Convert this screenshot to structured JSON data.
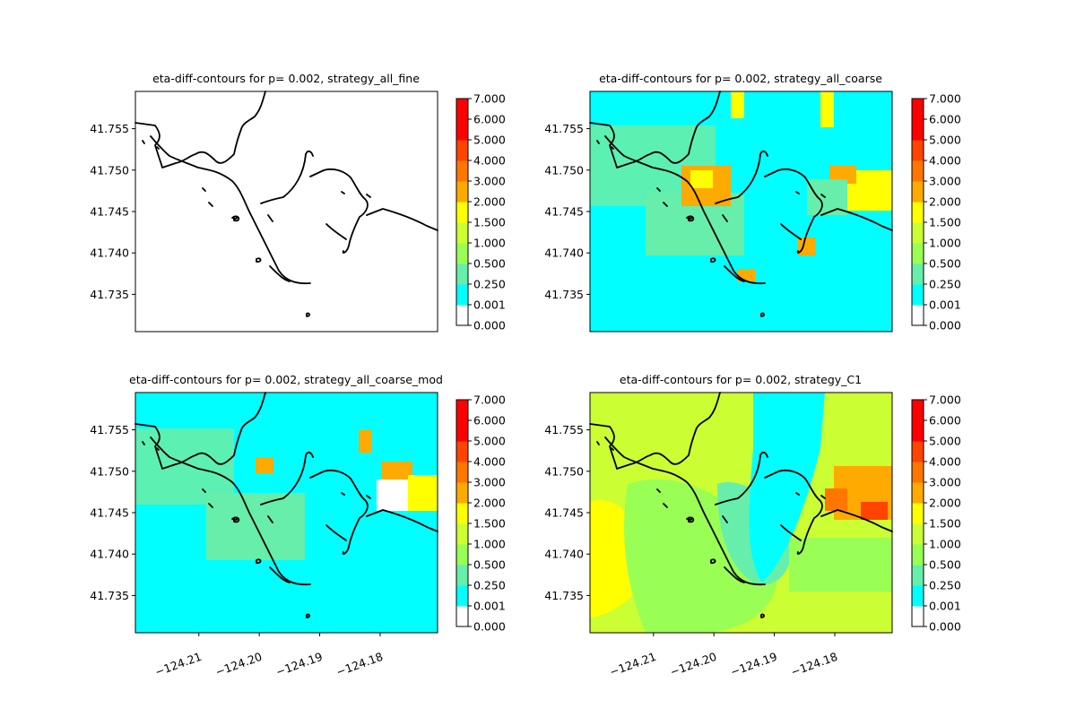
{
  "colors": {
    "levels": [
      "#ffffff",
      "#00ffff",
      "#66eeaa",
      "#99ff55",
      "#ccff33",
      "#ffff00",
      "#ffaa00",
      "#ff7700",
      "#ff4400",
      "#ff0000"
    ],
    "coast": "#000000"
  },
  "chart_data": [
    {
      "type": "heatmap",
      "title": "eta-diff-contours for p= 0.002, strategy_all_fine",
      "y_ticks": [
        "41.755",
        "41.750",
        "41.745",
        "41.740",
        "41.735"
      ],
      "x_ticks": [],
      "colorbar_ticks": [
        "7.000",
        "6.000",
        "5.000",
        "4.000",
        "3.000",
        "2.000",
        "1.500",
        "1.000",
        "0.500",
        "0.250",
        "0.001",
        "0.000"
      ],
      "colorbar_levels": [
        0.0,
        0.001,
        0.25,
        0.5,
        1.0,
        1.5,
        2.0,
        3.0,
        4.0,
        5.0,
        6.0,
        7.0
      ],
      "xlim": [
        -124.2205,
        -124.1705
      ],
      "ylim": [
        41.7305,
        41.7595
      ],
      "grid": false
    },
    {
      "type": "heatmap",
      "title": "eta-diff-contours for p= 0.002, strategy_all_coarse",
      "y_ticks": [
        "41.755",
        "41.750",
        "41.745",
        "41.740",
        "41.735"
      ],
      "x_ticks": [],
      "colorbar_ticks": [
        "7.000",
        "6.000",
        "5.000",
        "4.000",
        "3.000",
        "2.000",
        "1.500",
        "1.000",
        "0.500",
        "0.250",
        "0.001",
        "0.000"
      ],
      "colorbar_levels": [
        0.0,
        0.001,
        0.25,
        0.5,
        1.0,
        1.5,
        2.0,
        3.0,
        4.0,
        5.0,
        6.0,
        7.0
      ],
      "xlim": [
        -124.2205,
        -124.1705
      ],
      "ylim": [
        41.7305,
        41.7595
      ],
      "grid": false
    },
    {
      "type": "heatmap",
      "title": "eta-diff-contours for p= 0.002, strategy_all_coarse_mod",
      "y_ticks": [
        "41.755",
        "41.750",
        "41.745",
        "41.740",
        "41.735"
      ],
      "x_ticks": [
        "−124.21",
        "−124.20",
        "−124.19",
        "−124.18"
      ],
      "colorbar_ticks": [
        "7.000",
        "6.000",
        "5.000",
        "4.000",
        "3.000",
        "2.000",
        "1.500",
        "1.000",
        "0.500",
        "0.250",
        "0.001",
        "0.000"
      ],
      "colorbar_levels": [
        0.0,
        0.001,
        0.25,
        0.5,
        1.0,
        1.5,
        2.0,
        3.0,
        4.0,
        5.0,
        6.0,
        7.0
      ],
      "xlim": [
        -124.2205,
        -124.1705
      ],
      "ylim": [
        41.7305,
        41.7595
      ],
      "grid": false
    },
    {
      "type": "heatmap",
      "title": "eta-diff-contours for p= 0.002, strategy_C1",
      "y_ticks": [
        "41.755",
        "41.750",
        "41.745",
        "41.740",
        "41.735"
      ],
      "x_ticks": [
        "−124.21",
        "−124.20",
        "−124.19",
        "−124.18"
      ],
      "colorbar_ticks": [
        "7.000",
        "6.000",
        "5.000",
        "4.000",
        "3.000",
        "2.000",
        "1.500",
        "1.000",
        "0.500",
        "0.250",
        "0.001",
        "0.000"
      ],
      "colorbar_levels": [
        0.0,
        0.001,
        0.25,
        0.5,
        1.0,
        1.5,
        2.0,
        3.0,
        4.0,
        5.0,
        6.0,
        7.0
      ],
      "xlim": [
        -124.2205,
        -124.1705
      ],
      "ylim": [
        41.7305,
        41.7595
      ],
      "grid": false
    }
  ]
}
